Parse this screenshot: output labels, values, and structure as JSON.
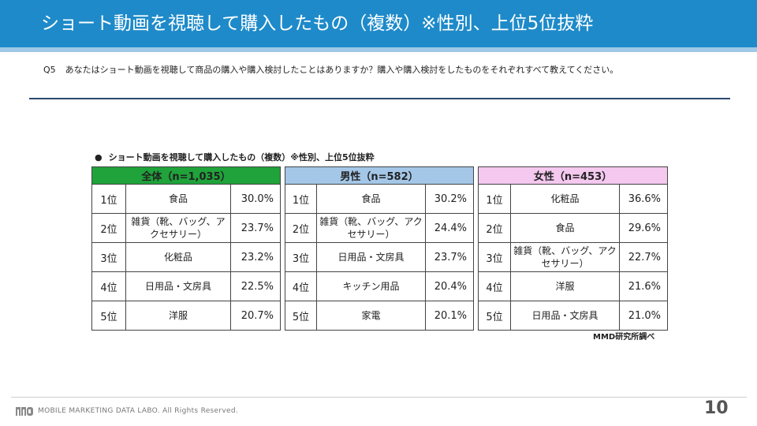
{
  "header": {
    "title": "ショート動画を視聴して購入したもの（複数）※性別、上位5位抜粋",
    "bg_color": "#1e8ac9"
  },
  "question": {
    "number": "Q5",
    "text": "あなたはショート動画を視聴して商品の購入や購入検討したことはありますか？購入や購入検討をしたものをそれぞれすべて教えてください。"
  },
  "chart": {
    "bullet": "●",
    "title": "ショート動画を視聴して購入したもの（複数）※性別、上位5位抜粋"
  },
  "tables": {
    "all": {
      "header": "全体（n=1,035）",
      "header_color": "#1fa33a",
      "rows": [
        {
          "rank": "1位",
          "item": "食品",
          "pct": "30.0%"
        },
        {
          "rank": "2位",
          "item": "雑貨（靴、バッグ、アクセサリー）",
          "pct": "23.7%"
        },
        {
          "rank": "3位",
          "item": "化粧品",
          "pct": "23.2%"
        },
        {
          "rank": "4位",
          "item": "日用品・文房具",
          "pct": "22.5%"
        },
        {
          "rank": "5位",
          "item": "洋服",
          "pct": "20.7%"
        }
      ]
    },
    "male": {
      "header": "男性（n=582）",
      "header_color": "#a4c7e8",
      "rows": [
        {
          "rank": "1位",
          "item": "食品",
          "pct": "30.2%"
        },
        {
          "rank": "2位",
          "item": "雑貨（靴、バッグ、アクセサリー）",
          "pct": "24.4%"
        },
        {
          "rank": "3位",
          "item": "日用品・文房具",
          "pct": "23.7%"
        },
        {
          "rank": "4位",
          "item": "キッチン用品",
          "pct": "20.4%"
        },
        {
          "rank": "5位",
          "item": "家電",
          "pct": "20.1%"
        }
      ]
    },
    "female": {
      "header": "女性（n=453）",
      "header_color": "#f4c8ef",
      "rows": [
        {
          "rank": "1位",
          "item": "化粧品",
          "pct": "36.6%"
        },
        {
          "rank": "2位",
          "item": "食品",
          "pct": "29.6%"
        },
        {
          "rank": "3位",
          "item": "雑貨（靴、バッグ、アクセサリー）",
          "pct": "22.7%"
        },
        {
          "rank": "4位",
          "item": "洋服",
          "pct": "21.6%"
        },
        {
          "rank": "5位",
          "item": "日用品・文房具",
          "pct": "21.0%"
        }
      ]
    }
  },
  "source": "MMD研究所調べ",
  "footer": {
    "logo_icon": "mmd-logo-icon",
    "text": "MOBILE MARKETING DATA LABO.  All Rights Reserved.",
    "page_number": "10"
  }
}
